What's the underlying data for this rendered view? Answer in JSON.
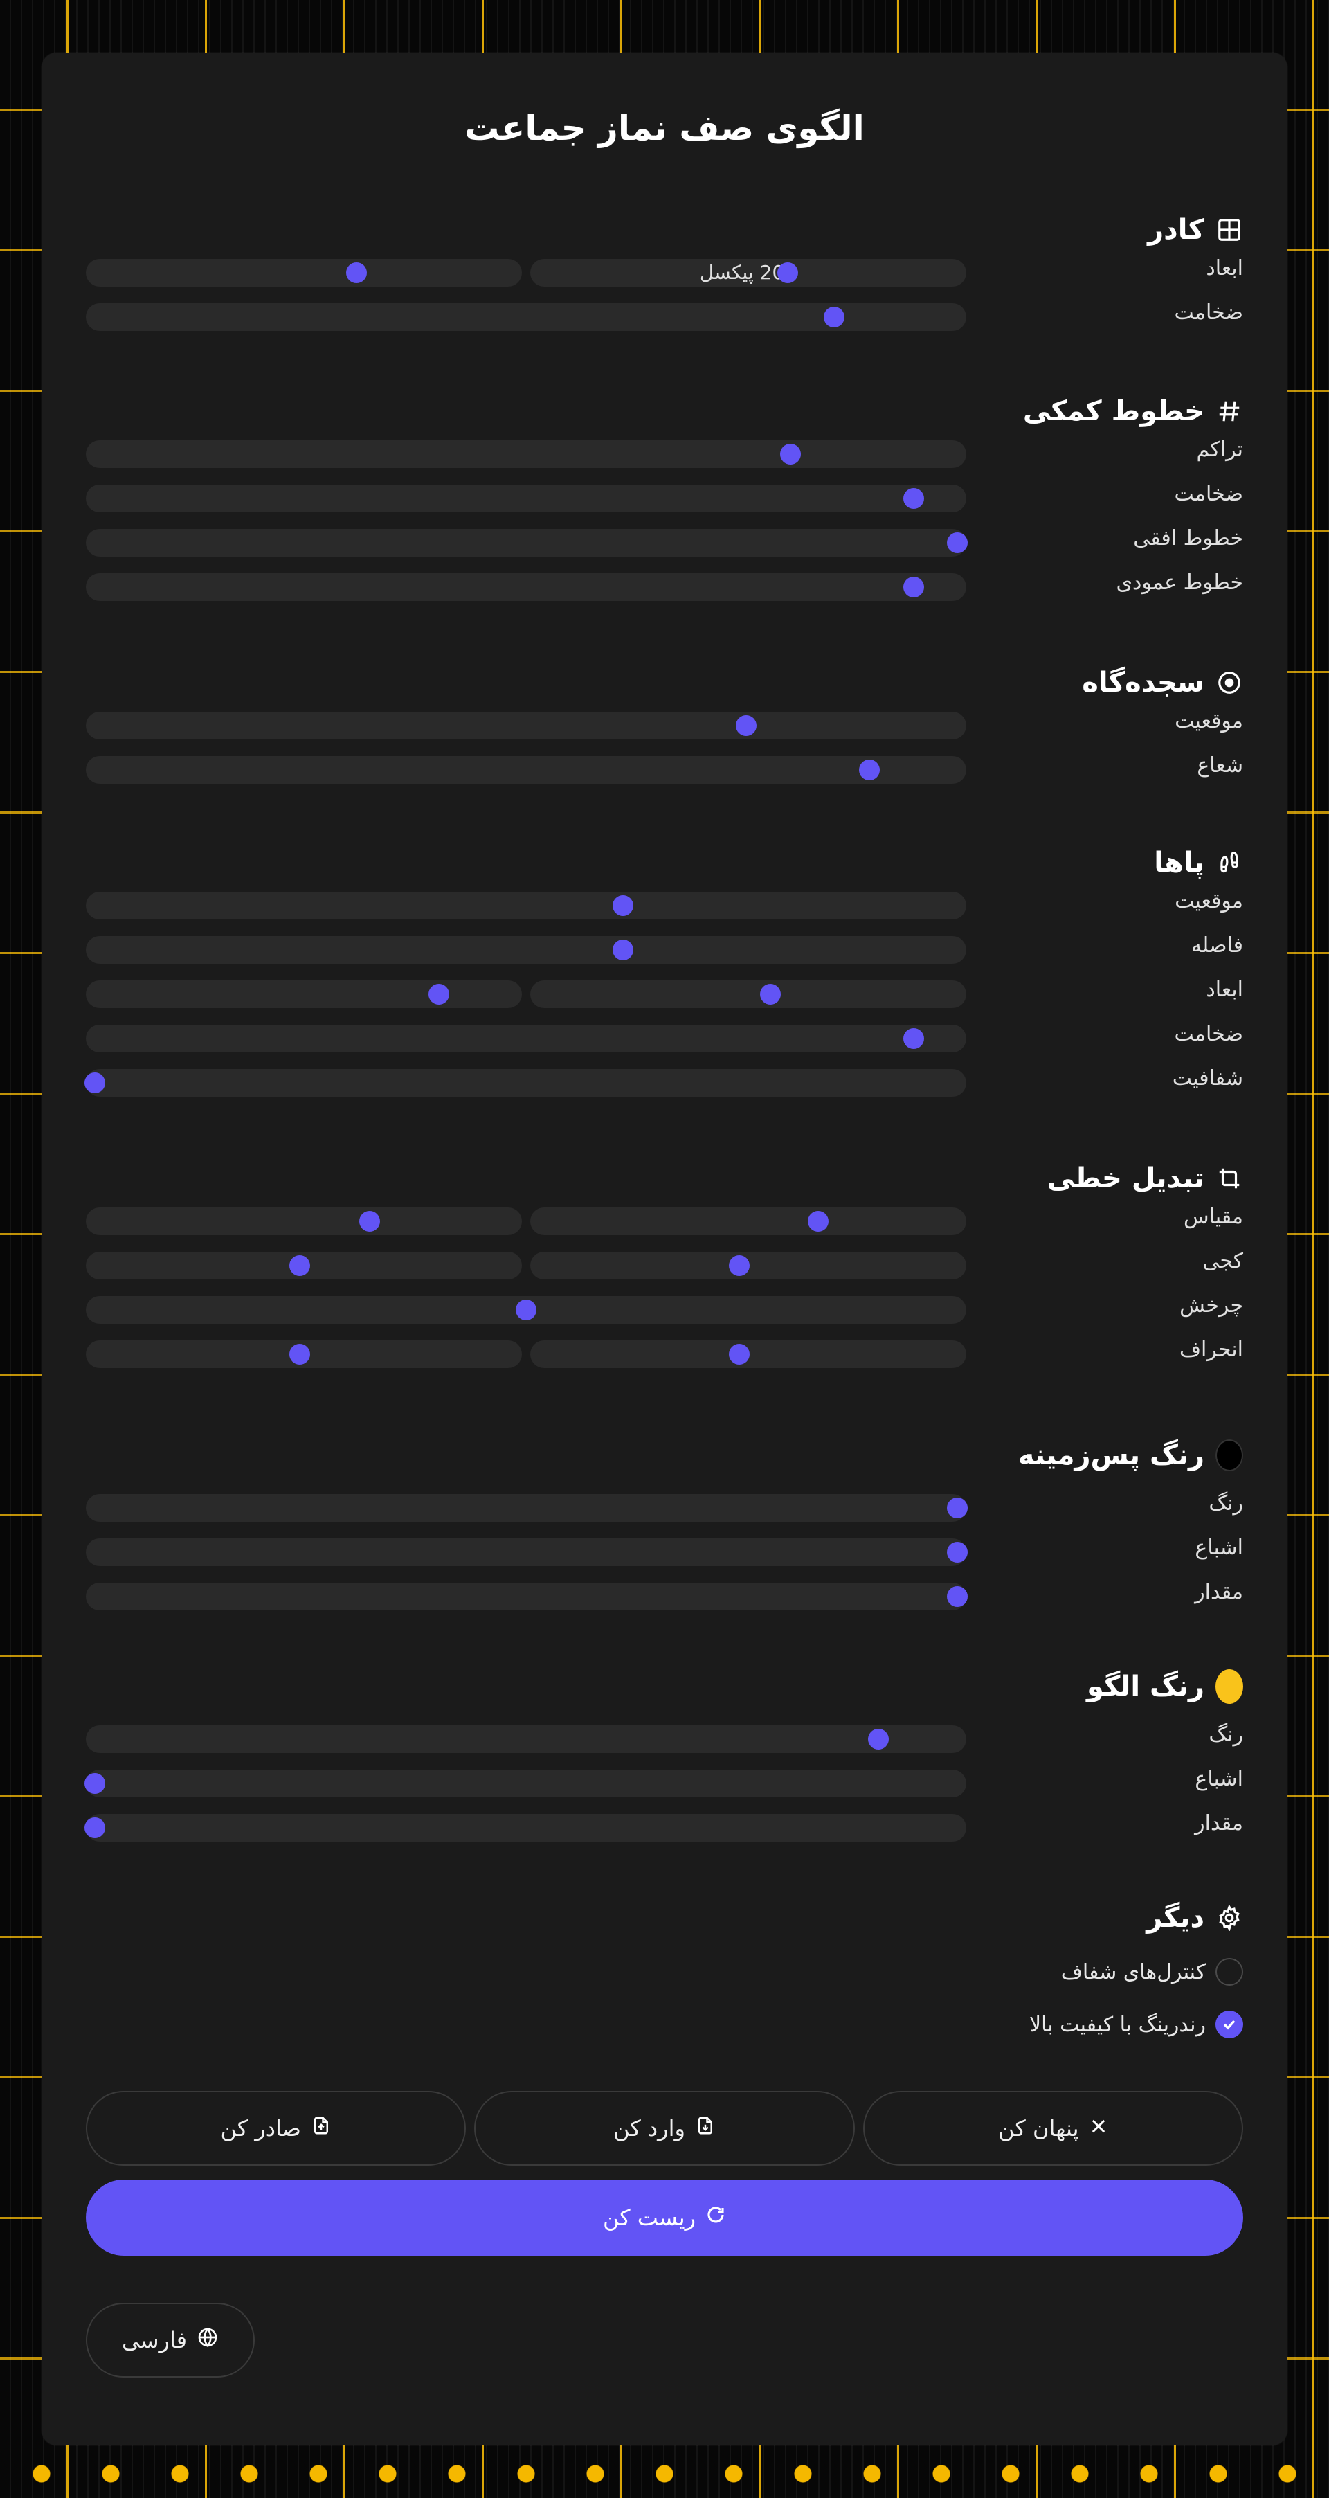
{
  "title": "الگوی صف نماز جماعت",
  "sections": {
    "frame": {
      "title": "کادر",
      "icon": "grid-icon",
      "rows": [
        {
          "label": "ابعاد",
          "split": true,
          "left": 0.59,
          "right": 0.62,
          "right_text": "200 پیکسل"
        },
        {
          "label": "ضخامت",
          "value": 0.85
        }
      ]
    },
    "guides": {
      "title": "خطوط کمکی",
      "icon": "hash-icon",
      "rows": [
        {
          "label": "تراکم",
          "value": 0.8
        },
        {
          "label": "ضخامت",
          "value": 0.94
        },
        {
          "label": "خطوط افقی",
          "value": 0.99
        },
        {
          "label": "خطوط عمودی",
          "value": 0.94
        }
      ]
    },
    "prayer_mat": {
      "title": "سجده‌گاه",
      "icon": "target-icon",
      "rows": [
        {
          "label": "موقعیت",
          "value": 0.75
        },
        {
          "label": "شعاع",
          "value": 0.89
        }
      ]
    },
    "feet": {
      "title": "پاها",
      "icon": "footprints-icon",
      "rows": [
        {
          "label": "موقعیت",
          "value": 0.61
        },
        {
          "label": "فاصله",
          "value": 0.61
        },
        {
          "label": "ابعاد",
          "split": true,
          "left": 0.55,
          "right": 0.81
        },
        {
          "label": "ضخامت",
          "value": 0.94
        },
        {
          "label": "شفافیت",
          "value": 0.01
        }
      ]
    },
    "transform": {
      "title": "تبدیل خطی",
      "icon": "transform-icon",
      "rows": [
        {
          "label": "مقیاس",
          "split": true,
          "left": 0.66,
          "right": 0.65
        },
        {
          "label": "کجی",
          "split": true,
          "left": 0.48,
          "right": 0.49
        },
        {
          "label": "چرخش",
          "value": 0.5
        },
        {
          "label": "انحراف",
          "split": true,
          "left": 0.48,
          "right": 0.49
        }
      ]
    },
    "bg_color": {
      "title": "رنگ پس‌زمینه",
      "icon": "color-swatch-icon",
      "swatch": "#000000",
      "rows": [
        {
          "label": "رنگ",
          "value": 0.99
        },
        {
          "label": "اشباع",
          "value": 0.99
        },
        {
          "label": "مقدار",
          "value": 0.99
        }
      ]
    },
    "pattern_color": {
      "title": "رنگ الگو",
      "icon": "color-swatch-icon",
      "swatch": "#f9c31b",
      "rows": [
        {
          "label": "رنگ",
          "value": 0.9
        },
        {
          "label": "اشباع",
          "value": 0.01
        },
        {
          "label": "مقدار",
          "value": 0.01
        }
      ]
    },
    "other": {
      "title": "دیگر",
      "icon": "gear-icon",
      "checks": [
        {
          "label": "کنترل‌های شفاف",
          "checked": false
        },
        {
          "label": "رندرینگ با کیفیت بالا",
          "checked": true
        }
      ]
    }
  },
  "buttons": {
    "hide": "پنهان کن",
    "import": "وارد کن",
    "export": "صادر کن",
    "reset": "ریست کن",
    "language": "فارسی"
  },
  "colors": {
    "accent": "#6254f5",
    "background": "#1b1b1b",
    "track": "#2a2a2a",
    "pattern": "#f9c31b"
  }
}
